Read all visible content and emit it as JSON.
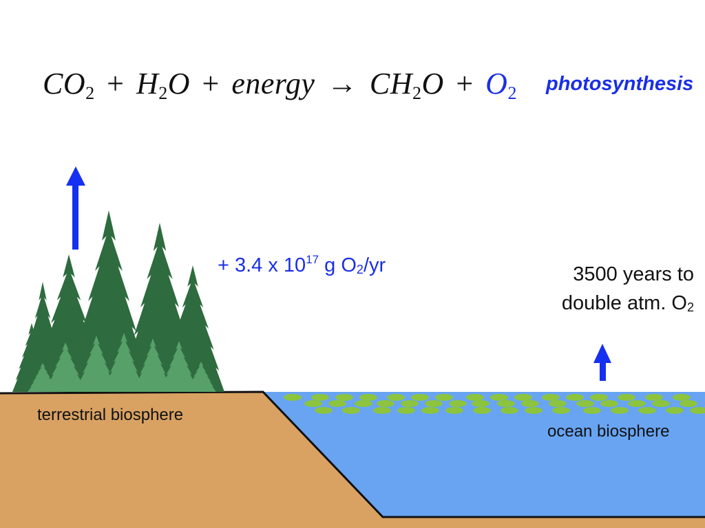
{
  "equation": {
    "t1": "CO",
    "s1": "2",
    "op1": "+",
    "t2": "H",
    "s2": "2",
    "t2b": "O",
    "op2": "+",
    "t3": "energy",
    "arrow": "→",
    "t4": "CH",
    "s4": "2",
    "t4b": "O",
    "op3": "+",
    "t5": "O",
    "s5": "2"
  },
  "process_label": "photosynthesis",
  "production_rate": {
    "prefix": "+ 3.4 x 10",
    "exponent": "17",
    "mid": " g O",
    "sub": "2",
    "suffix": "/yr"
  },
  "doubling": {
    "line1": "3500 years to",
    "line2": "double atm. O",
    "sub": "2"
  },
  "labels": {
    "terrestrial": "terrestrial biosphere",
    "ocean": "ocean biosphere"
  },
  "colors": {
    "oxygen_blue": "#1a2fe6",
    "arrow_blue": "#1530f0",
    "tree_dark": "#2e6b3e",
    "tree_light": "#57a06a",
    "soil": "#d9a263",
    "water": "#68a4f2",
    "plankton": "#8cc43e"
  },
  "icons": [
    "up-arrow-icon",
    "conifer-tree-icon",
    "plankton-icon"
  ]
}
